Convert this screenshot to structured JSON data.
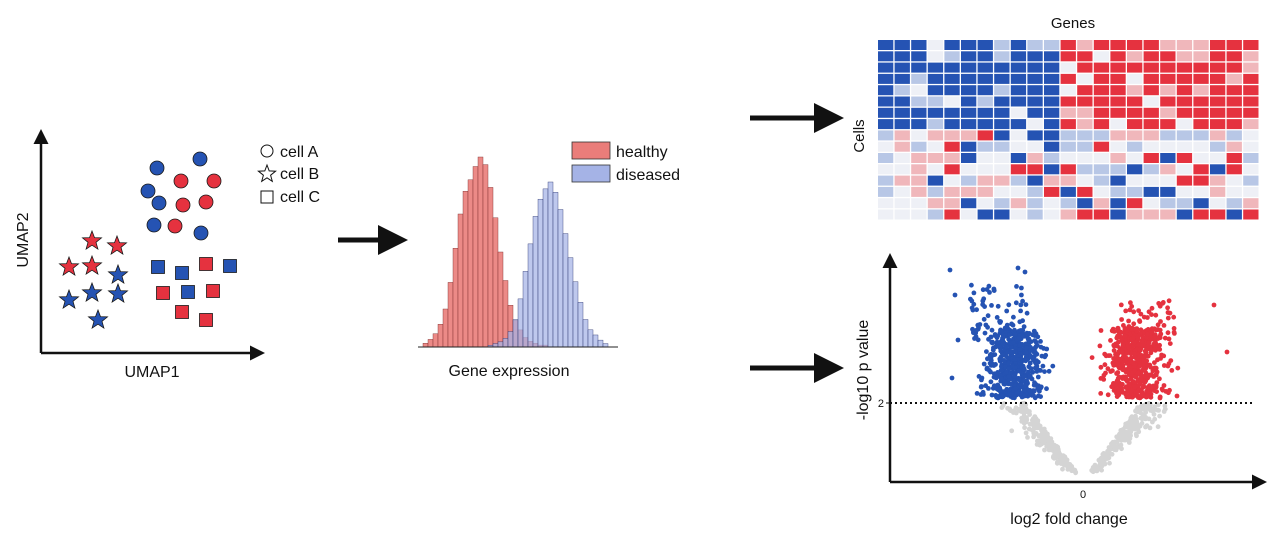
{
  "colors": {
    "red": "#e5323f",
    "blue": "#2553b3",
    "hist_red": "#ea7d7a",
    "hist_blue": "#a5b3e6",
    "grey": "#d4d4d4",
    "pale_blue": "#b8c7e6",
    "pale_red": "#f0b7bb",
    "near_white": "#eef0f6"
  },
  "umap": {
    "xlabel": "UMAP1",
    "ylabel": "UMAP2",
    "legend": [
      {
        "shape": "circle",
        "label": "cell A"
      },
      {
        "shape": "star",
        "label": "cell B"
      },
      {
        "shape": "square",
        "label": "cell C"
      }
    ]
  },
  "histogram": {
    "xlabel": "Gene expression",
    "legend": [
      {
        "label": "healthy",
        "color": "#ea7d7a"
      },
      {
        "label": "diseased",
        "color": "#a5b3e6"
      }
    ],
    "healthy_counts": [
      2,
      4,
      7,
      12,
      20,
      34,
      52,
      70,
      82,
      88,
      95,
      100,
      96,
      84,
      68,
      50,
      35,
      22,
      14,
      9,
      5,
      3,
      2,
      1,
      1
    ],
    "diseased_counts": [
      0,
      0,
      0,
      0,
      1,
      2,
      3,
      5,
      9,
      16,
      28,
      44,
      60,
      76,
      86,
      92,
      96,
      90,
      80,
      66,
      52,
      38,
      26,
      16,
      10,
      7,
      4,
      2
    ]
  },
  "heatmap": {
    "xlabel": "Genes",
    "ylabel": "Cells",
    "rows": 16,
    "cols": 23
  },
  "volcano": {
    "xlabel": "log2 fold change",
    "ylabel": "-log10 p value",
    "x_tick": "0",
    "y_tick": "2"
  }
}
